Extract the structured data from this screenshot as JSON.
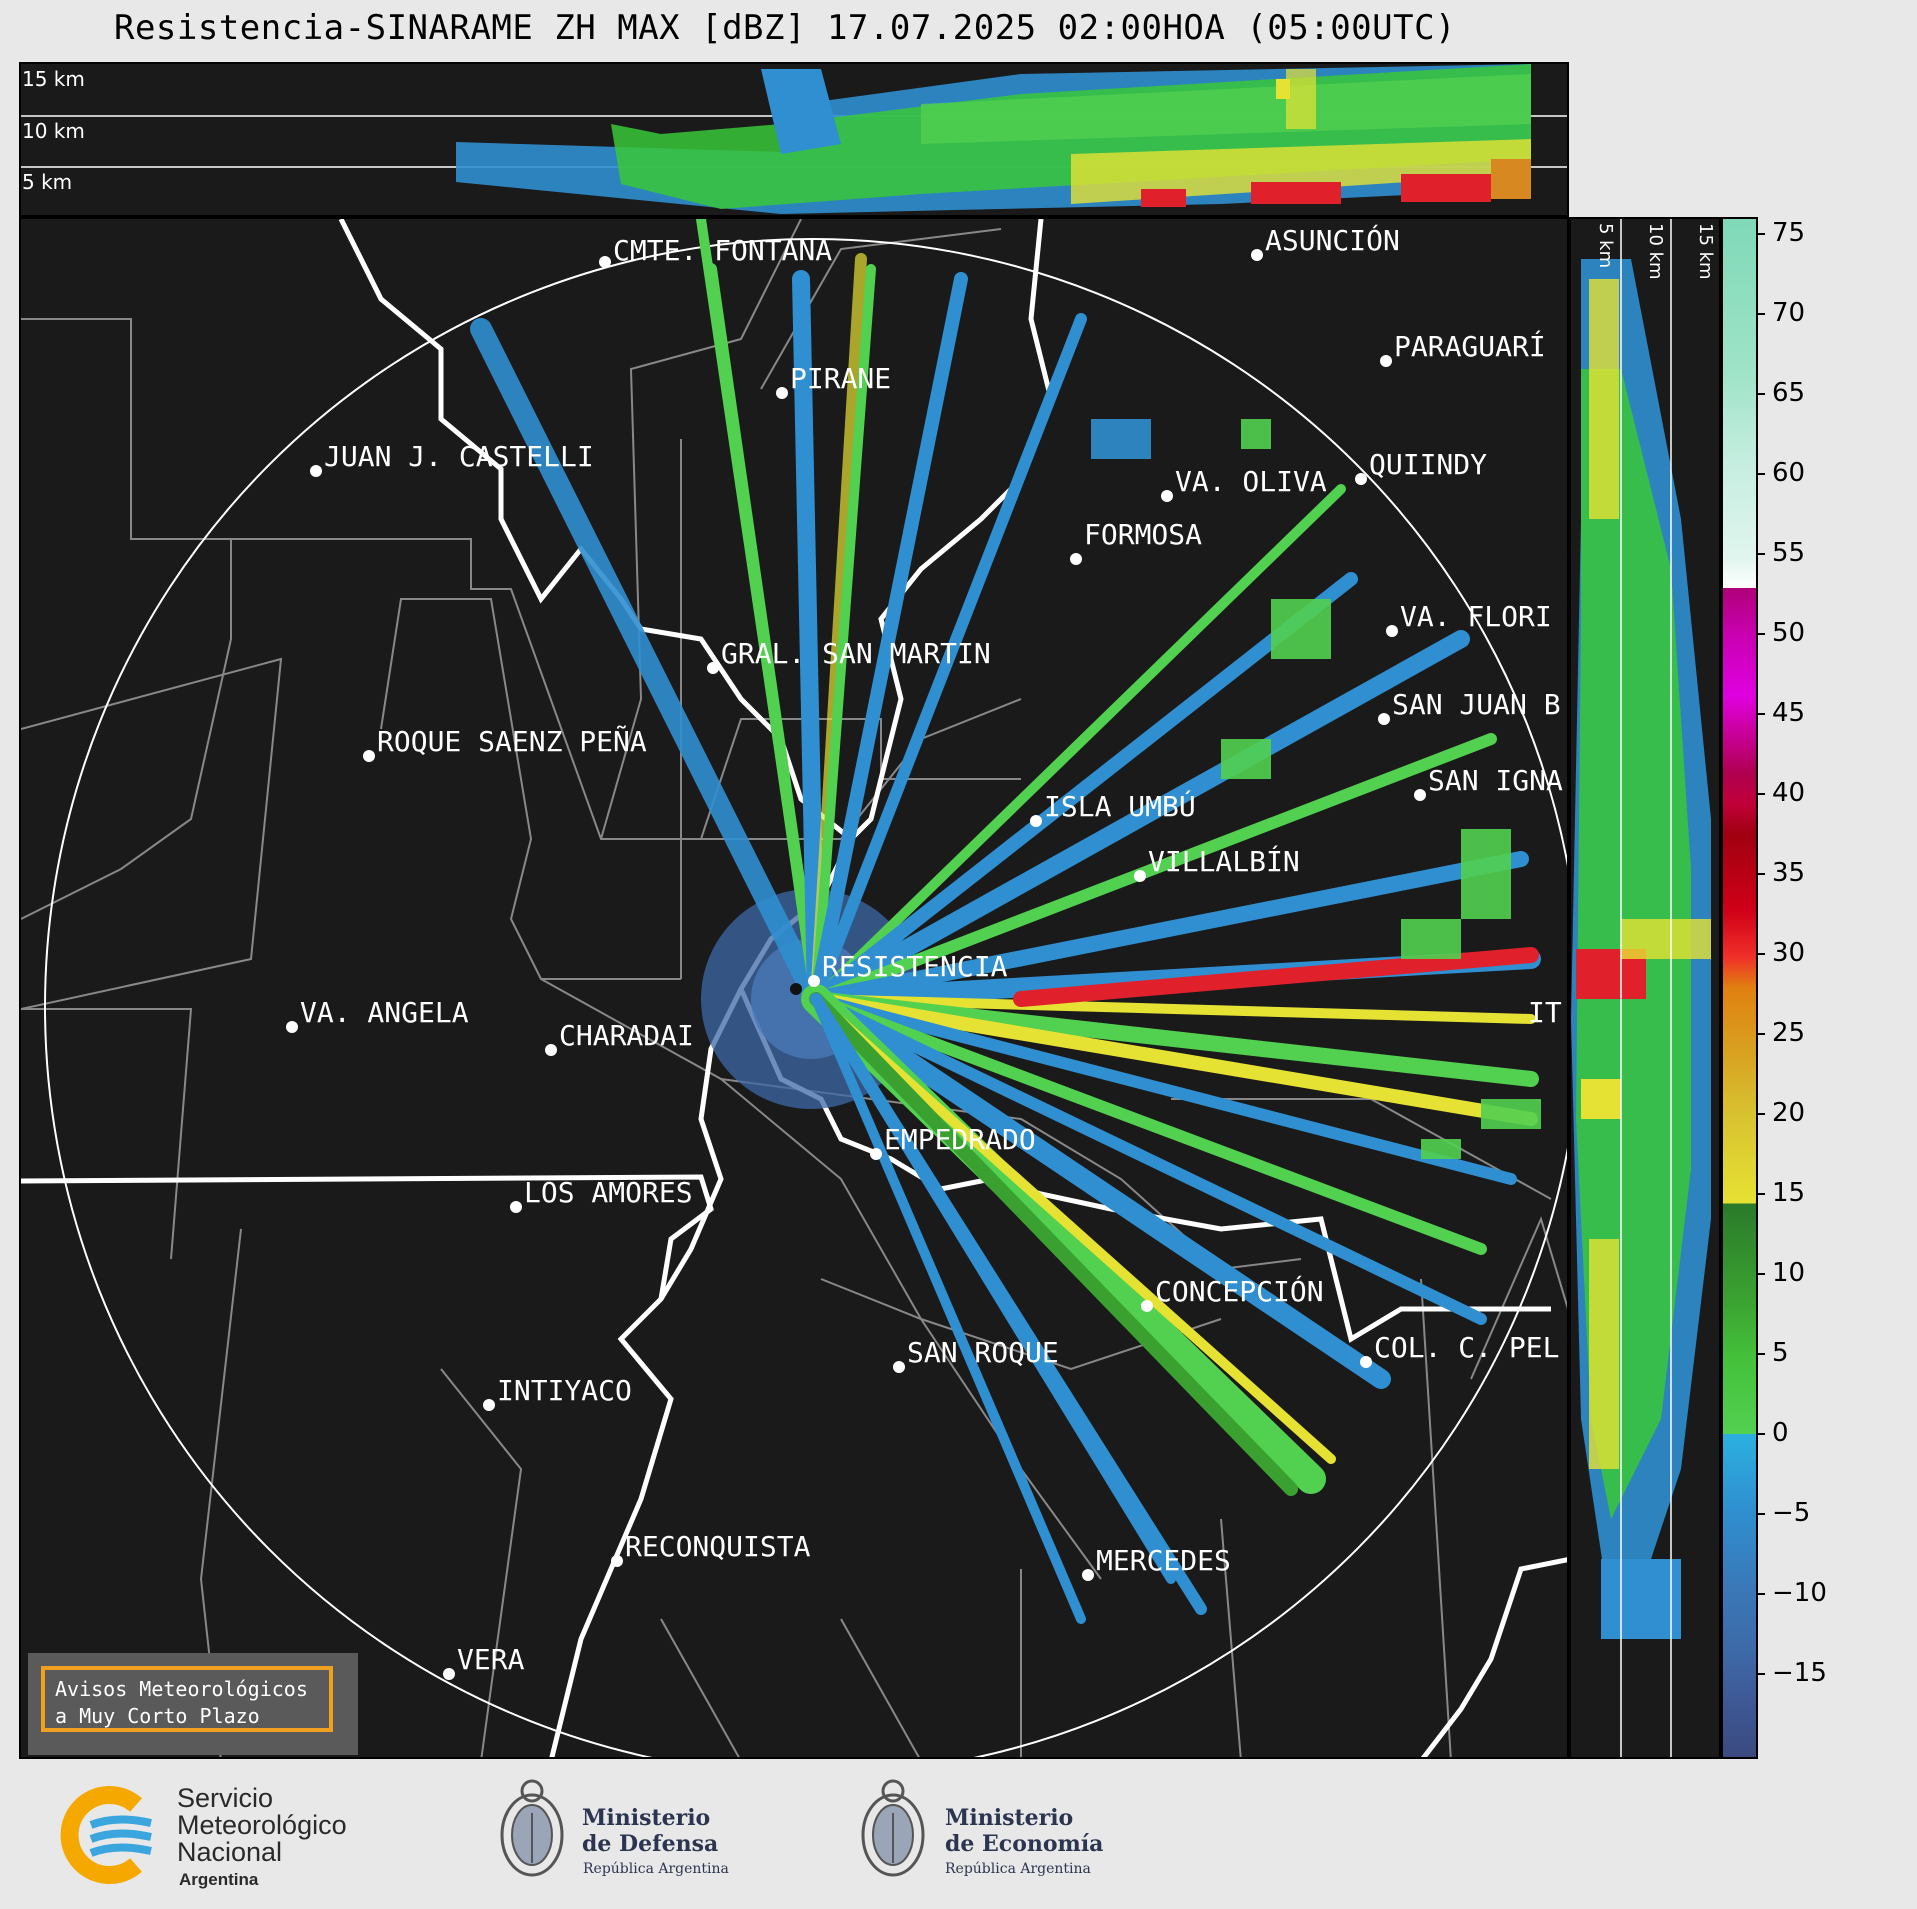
{
  "title": "Resistencia-SINARAME ZH MAX [dBZ] 17.07.2025 02:00HOA (05:00UTC)",
  "top_panel": {
    "km_labels": [
      "15 km",
      "10 km",
      "5 km"
    ]
  },
  "side_panel": {
    "km_labels": [
      "5 km",
      "10 km",
      "15 km"
    ]
  },
  "colorbar": {
    "ticks": [
      "75",
      "70",
      "65",
      "60",
      "55",
      "50",
      "45",
      "40",
      "35",
      "30",
      "25",
      "20",
      "15",
      "10",
      "5",
      "0",
      "−5",
      "−10",
      "−15"
    ]
  },
  "cities": [
    {
      "name": "CMTE. FONTANA"
    },
    {
      "name": "ASUNCIÓN"
    },
    {
      "name": "PARAGUARÍ"
    },
    {
      "name": "PIRANE"
    },
    {
      "name": "JUAN J. CASTELLI"
    },
    {
      "name": "VA. OLIVA"
    },
    {
      "name": "QUIINDY"
    },
    {
      "name": "FORMOSA"
    },
    {
      "name": "VA. FLORI"
    },
    {
      "name": "GRAL. SAN MARTIN"
    },
    {
      "name": "SAN JUAN B"
    },
    {
      "name": "ROQUE SAENZ PEÑA"
    },
    {
      "name": "SAN IGNA"
    },
    {
      "name": "ISLA UMBÚ"
    },
    {
      "name": "VILLALBÍN"
    },
    {
      "name": "RESISTENCIA"
    },
    {
      "name": "VA. ANGELA"
    },
    {
      "name": "CHARADAI"
    },
    {
      "name": "IT"
    },
    {
      "name": "EMPEDRADO"
    },
    {
      "name": "LOS AMORES"
    },
    {
      "name": "CONCEPCIÓN"
    },
    {
      "name": "SAN ROQUE"
    },
    {
      "name": "COL. C. PEL"
    },
    {
      "name": "INTIYACO"
    },
    {
      "name": "RECONQUISTA"
    },
    {
      "name": "MERCEDES"
    },
    {
      "name": "VERA"
    }
  ],
  "aviso": {
    "line1": "Avisos Meteorológicos",
    "line2": "a Muy Corto Plazo"
  },
  "footer": {
    "smn": {
      "line1": "Servicio",
      "line2": "Meteorológico",
      "line3": "Nacional",
      "line4": "Argentina"
    },
    "defensa": {
      "line1": "Ministerio",
      "line2": "de Defensa",
      "line3": "República Argentina"
    },
    "economia": {
      "line1": "Ministerio",
      "line2": "de Economía",
      "line3": "República Argentina"
    }
  }
}
